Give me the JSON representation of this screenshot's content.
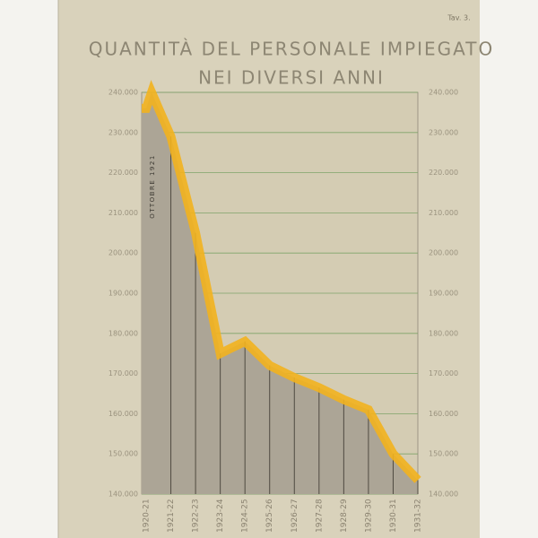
{
  "chart_data": {
    "type": "line",
    "title": "QUANTITÀ DEL PERSONALE IMPIEGATO",
    "subtitle": "NEI DIVERSI ANNI",
    "plate": "Tav. 3.",
    "categories": [
      "1920-21",
      "1921-22",
      "1922-23",
      "1923-24",
      "1924-25",
      "1925-26",
      "1926-27",
      "1927-28",
      "1928-29",
      "1929-30",
      "1930-31",
      "1931-32"
    ],
    "values": [
      236000,
      229000,
      205000,
      175000,
      178000,
      172000,
      169000,
      166500,
      163500,
      161000,
      150000,
      143500
    ],
    "annotation": {
      "text": "OTTOBRE 1921",
      "value": 240000
    },
    "color": "#f2b21e",
    "fill": "#aca596",
    "ylim": [
      140000,
      240000
    ],
    "yticks": [
      {
        "value": 140000,
        "label": "140.000"
      },
      {
        "value": 150000,
        "label": "150.000"
      },
      {
        "value": 160000,
        "label": "160.000"
      },
      {
        "value": 170000,
        "label": "170.000"
      },
      {
        "value": 180000,
        "label": "180.000"
      },
      {
        "value": 190000,
        "label": "190.000"
      },
      {
        "value": 200000,
        "label": "200.000"
      },
      {
        "value": 210000,
        "label": "210.000"
      },
      {
        "value": 220000,
        "label": "220.000"
      },
      {
        "value": 230000,
        "label": "230.000"
      },
      {
        "value": 240000,
        "label": "240.000"
      }
    ],
    "grid": true
  }
}
